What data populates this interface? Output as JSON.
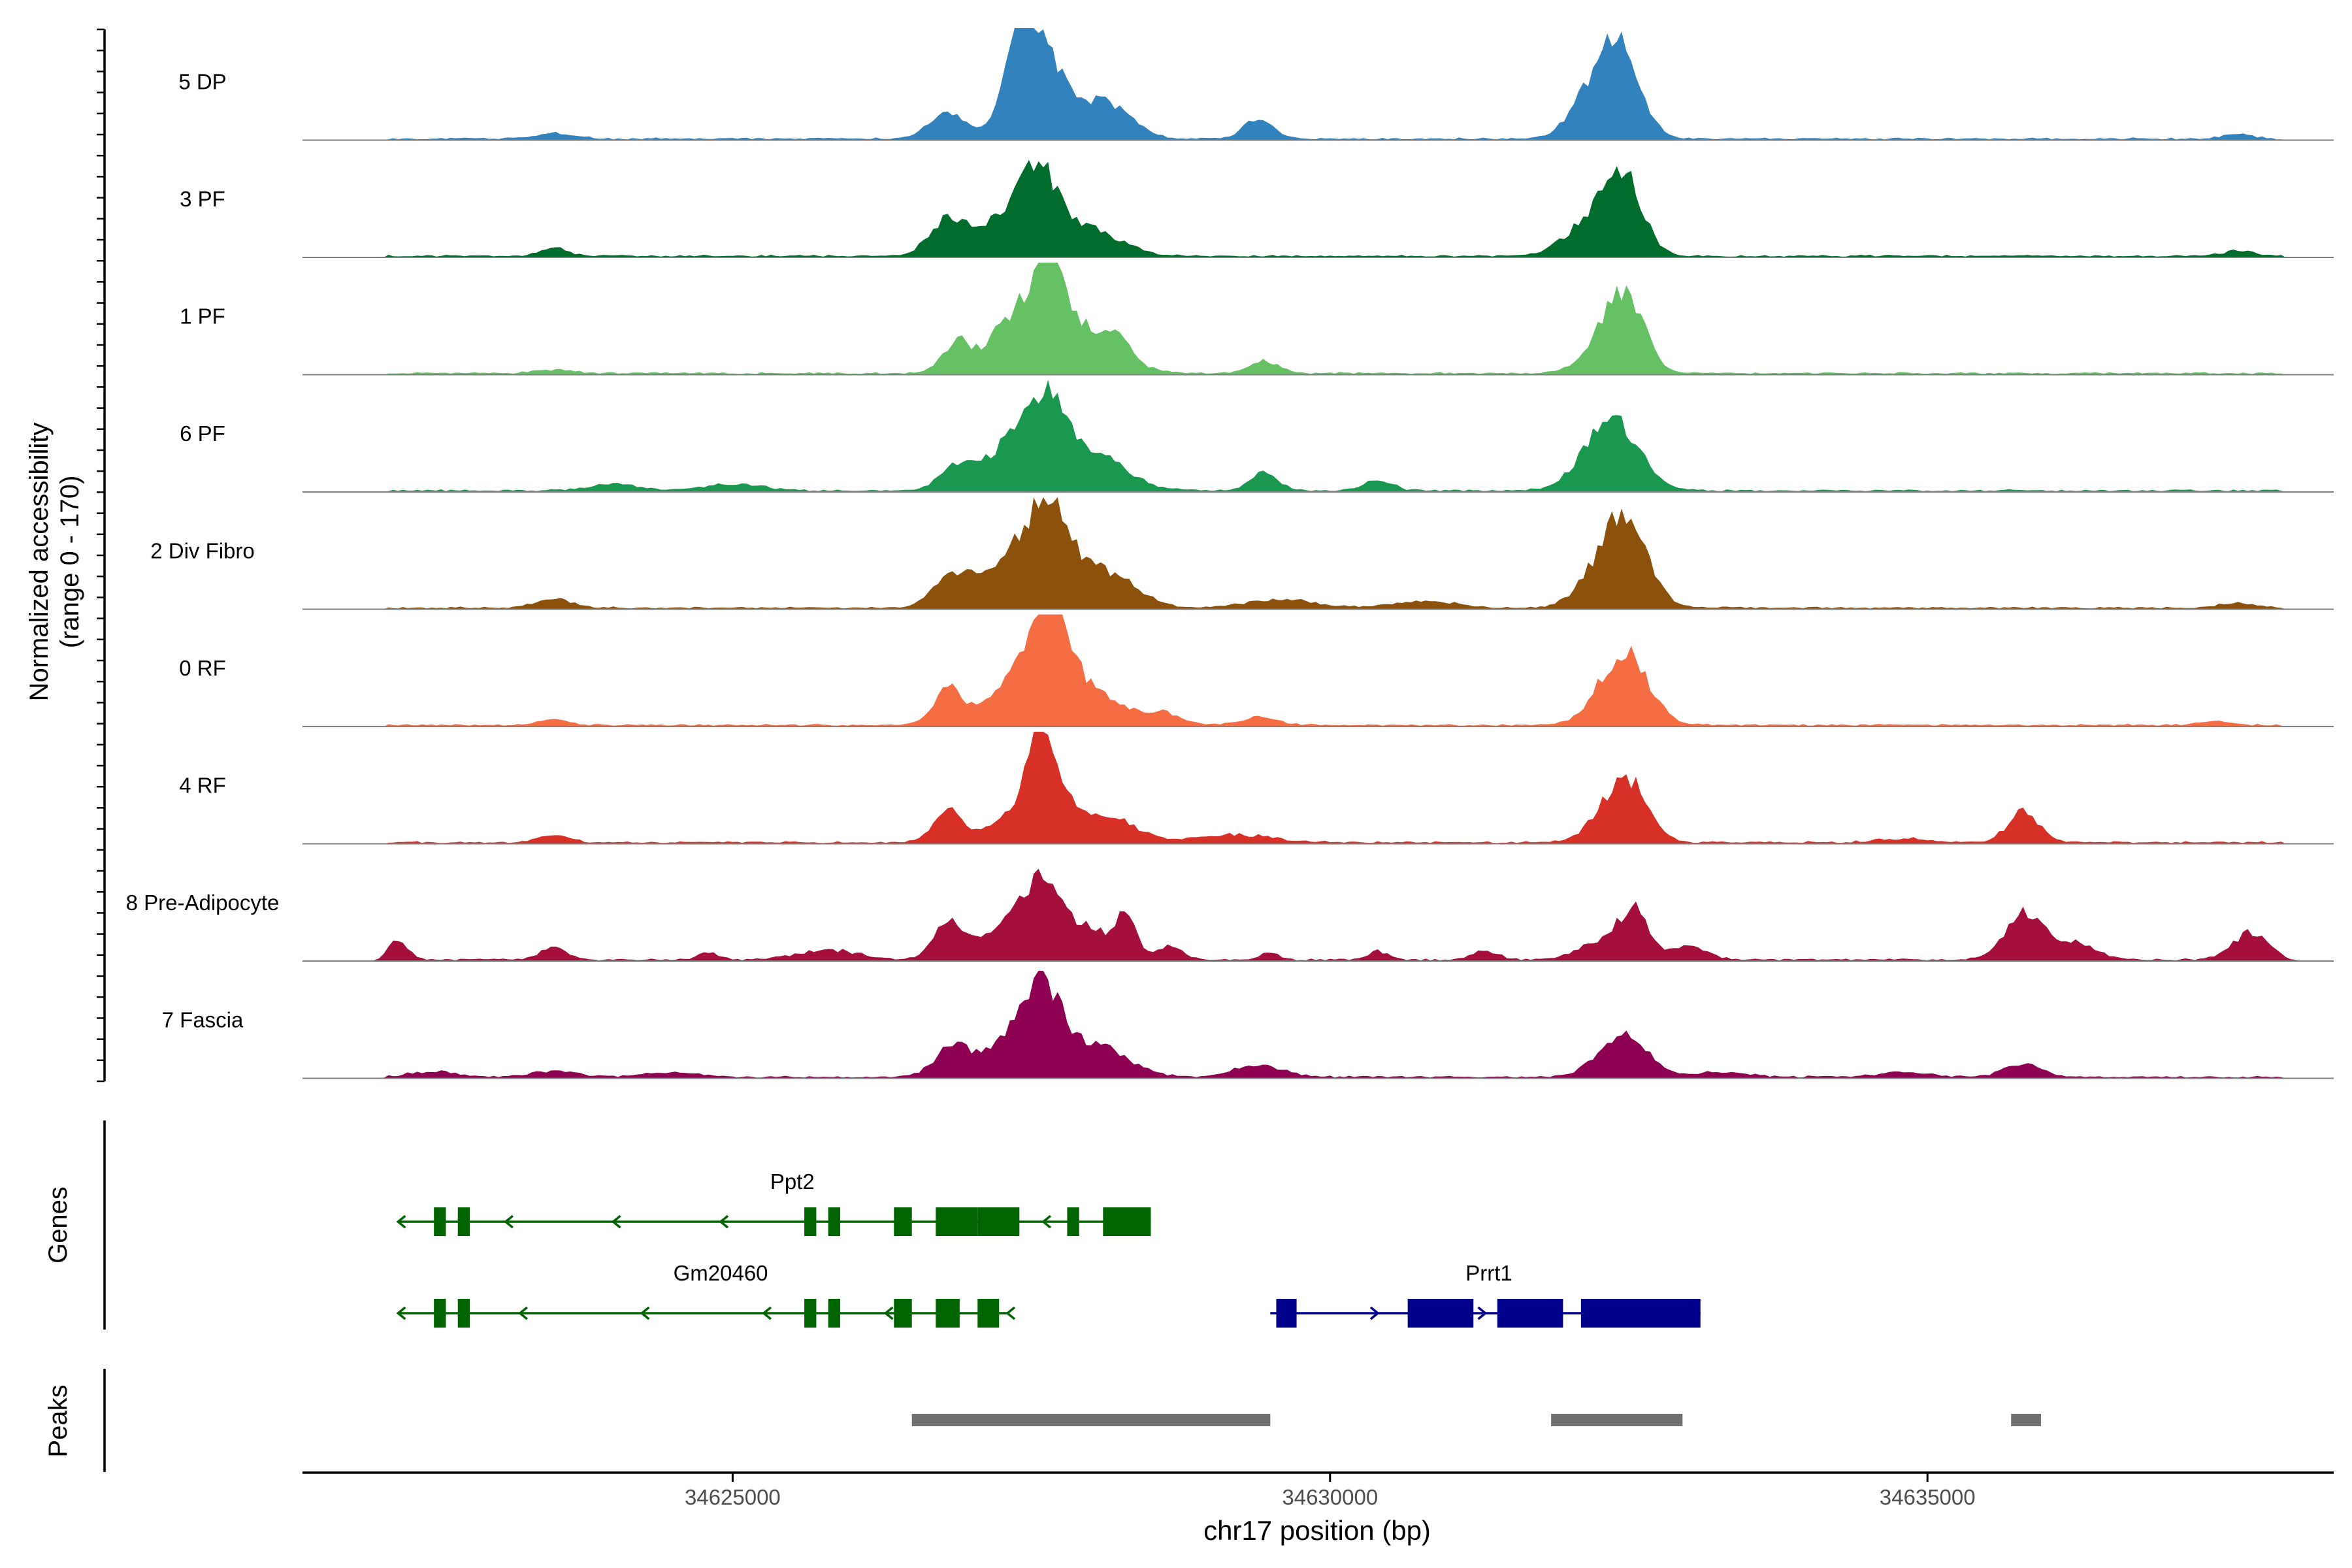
{
  "chart_data": {
    "type": "area",
    "title": "",
    "region": "chr17",
    "xlabel": "chr17 position (bp)",
    "ylabel_line1": "Normalized accessibility",
    "ylabel_line2": "(range 0 - 170)",
    "xlim": [
      34621400,
      34638400
    ],
    "ylim": [
      0,
      170
    ],
    "x_ticks": [
      34625000,
      34630000,
      34635000
    ],
    "x_tick_labels": [
      "34625000",
      "34630000",
      "34635000"
    ],
    "genes_label": "Genes",
    "peaks_label": "Peaks",
    "track_colors": [
      "#3182bd",
      "#006d2c",
      "#66c164",
      "#1a9850",
      "#8c510a",
      "#f46d43",
      "#d73027",
      "#a50f3b",
      "#8e0152"
    ],
    "tracks": [
      {
        "name": "5 DP",
        "color": "#3182bd",
        "peaks": [
          [
            34626800,
            38,
            150
          ],
          [
            34627400,
            150,
            140
          ],
          [
            34627650,
            100,
            170
          ],
          [
            34628100,
            55,
            220
          ],
          [
            34629400,
            30,
            120
          ],
          [
            34632200,
            70,
            180
          ],
          [
            34632450,
            115,
            160
          ],
          [
            34623500,
            8,
            160
          ],
          [
            34637600,
            8,
            120
          ]
        ]
      },
      {
        "name": "3 PF",
        "color": "#006d2c",
        "peaks": [
          [
            34626800,
            55,
            150
          ],
          [
            34627200,
            40,
            200
          ],
          [
            34627550,
            120,
            180
          ],
          [
            34628000,
            40,
            250
          ],
          [
            34632150,
            45,
            200
          ],
          [
            34632450,
            115,
            160
          ],
          [
            34623500,
            12,
            120
          ],
          [
            34637600,
            8,
            120
          ]
        ]
      },
      {
        "name": "1 PF",
        "color": "#66c164",
        "peaks": [
          [
            34626900,
            50,
            130
          ],
          [
            34627250,
            50,
            120
          ],
          [
            34627600,
            150,
            180
          ],
          [
            34628000,
            55,
            250
          ],
          [
            34628250,
            20,
            100
          ],
          [
            34629450,
            18,
            120
          ],
          [
            34632300,
            50,
            180
          ],
          [
            34632500,
            95,
            150
          ],
          [
            34623500,
            5,
            150
          ]
        ]
      },
      {
        "name": "6 PF",
        "color": "#1a9850",
        "peaks": [
          [
            34626900,
            40,
            150
          ],
          [
            34627250,
            45,
            150
          ],
          [
            34627600,
            140,
            180
          ],
          [
            34628050,
            55,
            250
          ],
          [
            34629450,
            28,
            110
          ],
          [
            34630400,
            15,
            120
          ],
          [
            34632350,
            110,
            220
          ],
          [
            34624000,
            10,
            200
          ],
          [
            34625000,
            9,
            250
          ]
        ]
      },
      {
        "name": "2 Div Fibro",
        "color": "#8c510a",
        "peaks": [
          [
            34626850,
            50,
            160
          ],
          [
            34627300,
            75,
            180
          ],
          [
            34627650,
            155,
            160
          ],
          [
            34628100,
            55,
            250
          ],
          [
            34629600,
            12,
            300
          ],
          [
            34630800,
            10,
            250
          ],
          [
            34632450,
            145,
            190
          ],
          [
            34632100,
            15,
            150
          ],
          [
            34623500,
            14,
            150
          ],
          [
            34637600,
            8,
            150
          ]
        ]
      },
      {
        "name": "0 RF",
        "color": "#f46d43",
        "peaks": [
          [
            34626800,
            55,
            120
          ],
          [
            34627300,
            60,
            200
          ],
          [
            34627650,
            150,
            160
          ],
          [
            34628000,
            50,
            250
          ],
          [
            34628600,
            18,
            150
          ],
          [
            34629400,
            12,
            150
          ],
          [
            34632500,
            100,
            180
          ],
          [
            34632250,
            25,
            150
          ],
          [
            34623500,
            10,
            120
          ],
          [
            34637400,
            6,
            120
          ]
        ]
      },
      {
        "name": "4 RF",
        "color": "#d73027",
        "peaks": [
          [
            34626800,
            50,
            120
          ],
          [
            34627250,
            35,
            150
          ],
          [
            34627600,
            170,
            130
          ],
          [
            34628050,
            45,
            280
          ],
          [
            34629200,
            12,
            300
          ],
          [
            34632500,
            90,
            160
          ],
          [
            34632250,
            25,
            150
          ],
          [
            34635800,
            45,
            130
          ],
          [
            34623500,
            12,
            120
          ],
          [
            34634800,
            6,
            200
          ]
        ]
      },
      {
        "name": "8 Pre-Adipocyte",
        "color": "#a50f3b",
        "peaks": [
          [
            34626800,
            60,
            120
          ],
          [
            34627300,
            55,
            200
          ],
          [
            34627600,
            105,
            150
          ],
          [
            34628000,
            45,
            200
          ],
          [
            34628300,
            55,
            80
          ],
          [
            34628650,
            20,
            120
          ],
          [
            34622200,
            30,
            80
          ],
          [
            34623500,
            20,
            100
          ],
          [
            34624800,
            12,
            80
          ],
          [
            34625800,
            15,
            250
          ],
          [
            34632300,
            30,
            200
          ],
          [
            34632550,
            65,
            120
          ],
          [
            34633000,
            20,
            150
          ],
          [
            34635800,
            70,
            150
          ],
          [
            34636200,
            25,
            200
          ],
          [
            34637700,
            40,
            150
          ],
          [
            34629500,
            10,
            80
          ],
          [
            34630400,
            12,
            80
          ],
          [
            34631300,
            14,
            100
          ]
        ]
      },
      {
        "name": "7 Fascia",
        "color": "#8e0152",
        "peaks": [
          [
            34626850,
            48,
            150
          ],
          [
            34627300,
            45,
            180
          ],
          [
            34627600,
            120,
            170
          ],
          [
            34628050,
            45,
            260
          ],
          [
            34629400,
            18,
            200
          ],
          [
            34632450,
            65,
            200
          ],
          [
            34635800,
            20,
            150
          ],
          [
            34622500,
            8,
            200
          ],
          [
            34623500,
            8,
            200
          ],
          [
            34624500,
            7,
            200
          ],
          [
            34633300,
            8,
            200
          ],
          [
            34634800,
            7,
            200
          ]
        ]
      }
    ],
    "genes": [
      {
        "name": "Ppt2",
        "strand": "-",
        "start": 34622200,
        "end": 34628500,
        "color": "#006400",
        "exons": [
          [
            34622500,
            34622600
          ],
          [
            34622700,
            34622800
          ],
          [
            34625600,
            34625700
          ],
          [
            34625800,
            34625900
          ],
          [
            34626350,
            34626500
          ],
          [
            34626700,
            34627050
          ],
          [
            34627050,
            34627400
          ],
          [
            34627800,
            34627900
          ],
          [
            34628100,
            34628500
          ]
        ]
      },
      {
        "name": "Gm20460",
        "strand": "-",
        "start": 34622200,
        "end": 34627300,
        "color": "#006400",
        "exons": [
          [
            34622500,
            34622600
          ],
          [
            34622700,
            34622800
          ],
          [
            34625600,
            34625700
          ],
          [
            34625800,
            34625900
          ],
          [
            34626350,
            34626500
          ],
          [
            34626700,
            34626900
          ],
          [
            34627050,
            34627230
          ]
        ]
      },
      {
        "name": "Prrt1",
        "strand": "+",
        "start": 34629500,
        "end": 34633100,
        "color": "#00008b",
        "exons": [
          [
            34629550,
            34629720
          ],
          [
            34630650,
            34631200
          ],
          [
            34631400,
            34631950
          ],
          [
            34632100,
            34633100
          ]
        ]
      }
    ],
    "peak_regions": [
      [
        34626500,
        34629500
      ],
      [
        34631850,
        34632950
      ],
      [
        34635700,
        34635950
      ]
    ]
  }
}
